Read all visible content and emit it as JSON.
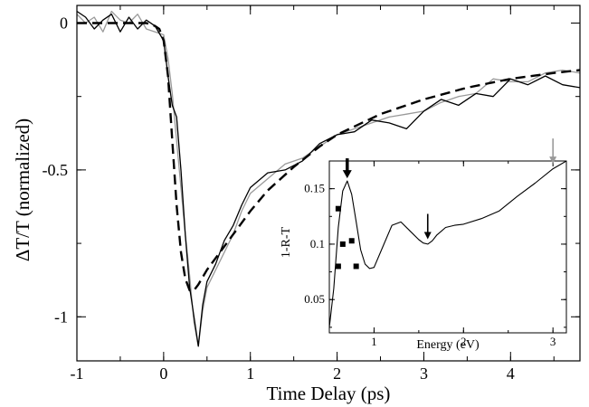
{
  "chart_data": [
    {
      "type": "line",
      "xlabel": "Time Delay (ps)",
      "ylabel": "ΔT/T (normalized)",
      "xlim": [
        -1,
        4.8
      ],
      "ylim": [
        -1.15,
        0.06
      ],
      "x_ticks": [
        -1,
        0,
        1,
        2,
        3,
        4
      ],
      "x_tick_labels": [
        "-1",
        "0",
        "1",
        "2",
        "3",
        "4"
      ],
      "y_ticks": [
        0,
        -0.5,
        -1
      ],
      "y_tick_labels": [
        "0",
        "-0.5",
        "-1"
      ],
      "grid": false,
      "legend": "none",
      "series": [
        {
          "style": "noisy data, gray",
          "color": "#9a9a9a",
          "x": [
            -1.0,
            -0.9,
            -0.8,
            -0.7,
            -0.6,
            -0.5,
            -0.4,
            -0.3,
            -0.2,
            -0.1,
            0.0,
            0.05,
            0.1,
            0.15,
            0.2,
            0.25,
            0.3,
            0.35,
            0.4,
            0.45,
            0.5,
            0.6,
            0.7,
            0.8,
            0.9,
            1.0,
            1.2,
            1.4,
            1.6,
            1.8,
            2.0,
            2.2,
            2.4,
            2.6,
            2.8,
            3.0,
            3.2,
            3.4,
            3.6,
            3.8,
            4.0,
            4.2,
            4.4,
            4.6,
            4.8
          ],
          "y": [
            0.03,
            0.0,
            0.02,
            -0.03,
            0.04,
            0.01,
            0.0,
            0.03,
            -0.02,
            -0.03,
            -0.04,
            -0.12,
            -0.24,
            -0.4,
            -0.56,
            -0.72,
            -0.86,
            -1.02,
            -1.1,
            -0.98,
            -0.9,
            -0.84,
            -0.78,
            -0.72,
            -0.64,
            -0.58,
            -0.53,
            -0.48,
            -0.46,
            -0.42,
            -0.38,
            -0.36,
            -0.34,
            -0.32,
            -0.31,
            -0.3,
            -0.27,
            -0.25,
            -0.24,
            -0.19,
            -0.2,
            -0.2,
            -0.17,
            -0.16,
            -0.17
          ]
        },
        {
          "style": "noisy data, black",
          "color": "#000000",
          "x": [
            -1.0,
            -0.9,
            -0.8,
            -0.7,
            -0.6,
            -0.5,
            -0.4,
            -0.3,
            -0.2,
            -0.1,
            0.0,
            0.05,
            0.1,
            0.15,
            0.2,
            0.25,
            0.3,
            0.35,
            0.4,
            0.45,
            0.5,
            0.6,
            0.7,
            0.8,
            0.9,
            1.0,
            1.2,
            1.4,
            1.6,
            1.8,
            2.0,
            2.2,
            2.4,
            2.6,
            2.8,
            3.0,
            3.2,
            3.4,
            3.6,
            3.8,
            4.0,
            4.2,
            4.4,
            4.6,
            4.8
          ],
          "y": [
            0.04,
            0.02,
            -0.02,
            0.01,
            0.03,
            -0.03,
            0.02,
            -0.02,
            0.01,
            -0.01,
            -0.06,
            -0.18,
            -0.28,
            -0.32,
            -0.5,
            -0.72,
            -0.9,
            -1.0,
            -1.1,
            -0.96,
            -0.88,
            -0.82,
            -0.74,
            -0.69,
            -0.62,
            -0.56,
            -0.51,
            -0.5,
            -0.47,
            -0.41,
            -0.38,
            -0.37,
            -0.33,
            -0.34,
            -0.36,
            -0.3,
            -0.26,
            -0.28,
            -0.24,
            -0.25,
            -0.19,
            -0.21,
            -0.18,
            -0.21,
            -0.22
          ]
        },
        {
          "style": "dashed fit",
          "color": "#000000",
          "x": [
            -1.0,
            -0.5,
            -0.2,
            -0.1,
            -0.05,
            0.0,
            0.05,
            0.1,
            0.15,
            0.2,
            0.25,
            0.3,
            0.35,
            0.4,
            0.5,
            0.6,
            0.8,
            1.0,
            1.2,
            1.5,
            1.8,
            2.0,
            2.5,
            3.0,
            3.5,
            4.0,
            4.5,
            4.8
          ],
          "y": [
            0.0,
            0.0,
            0.0,
            -0.01,
            -0.02,
            -0.06,
            -0.18,
            -0.4,
            -0.62,
            -0.78,
            -0.87,
            -0.91,
            -0.91,
            -0.89,
            -0.84,
            -0.8,
            -0.72,
            -0.64,
            -0.57,
            -0.49,
            -0.42,
            -0.38,
            -0.31,
            -0.26,
            -0.22,
            -0.19,
            -0.17,
            -0.16
          ]
        }
      ]
    },
    {
      "type": "line",
      "role": "inset",
      "xlabel": "Energy (eV)",
      "ylabel": "1-R-T",
      "xlim": [
        0.5,
        3.15
      ],
      "ylim": [
        0.02,
        0.175
      ],
      "x_ticks": [
        1,
        2,
        3
      ],
      "x_tick_labels": [
        "1",
        "2",
        "3"
      ],
      "y_ticks": [
        0.05,
        0.1,
        0.15
      ],
      "y_tick_labels": [
        "0.05",
        "0.1",
        "0.15"
      ],
      "grid": false,
      "legend": "none",
      "series": [
        {
          "style": "solid line",
          "color": "#000000",
          "x": [
            0.5,
            0.55,
            0.6,
            0.65,
            0.7,
            0.75,
            0.8,
            0.85,
            0.9,
            0.95,
            1.0,
            1.1,
            1.2,
            1.3,
            1.4,
            1.5,
            1.55,
            1.6,
            1.65,
            1.7,
            1.8,
            1.9,
            2.0,
            2.2,
            2.4,
            2.6,
            2.8,
            3.0,
            3.15
          ],
          "y": [
            0.025,
            0.06,
            0.115,
            0.148,
            0.157,
            0.145,
            0.12,
            0.095,
            0.082,
            0.078,
            0.079,
            0.098,
            0.117,
            0.12,
            0.112,
            0.104,
            0.101,
            0.1,
            0.103,
            0.108,
            0.115,
            0.117,
            0.118,
            0.123,
            0.13,
            0.143,
            0.155,
            0.168,
            0.175
          ]
        },
        {
          "style": "square markers",
          "color": "#000000",
          "x": [
            0.6,
            0.65,
            0.6,
            0.75,
            0.8
          ],
          "y": [
            0.08,
            0.1,
            0.132,
            0.103,
            0.08
          ]
        }
      ],
      "annotations": [
        {
          "type": "arrow",
          "x": 0.7,
          "y": 0.157,
          "color": "#000000",
          "weight": "bold"
        },
        {
          "type": "arrow",
          "x": 1.6,
          "y": 0.102,
          "color": "#000000",
          "weight": "thin"
        },
        {
          "type": "arrow",
          "x": 3.0,
          "y": 0.17,
          "color": "#9a9a9a",
          "weight": "thin"
        }
      ]
    }
  ]
}
